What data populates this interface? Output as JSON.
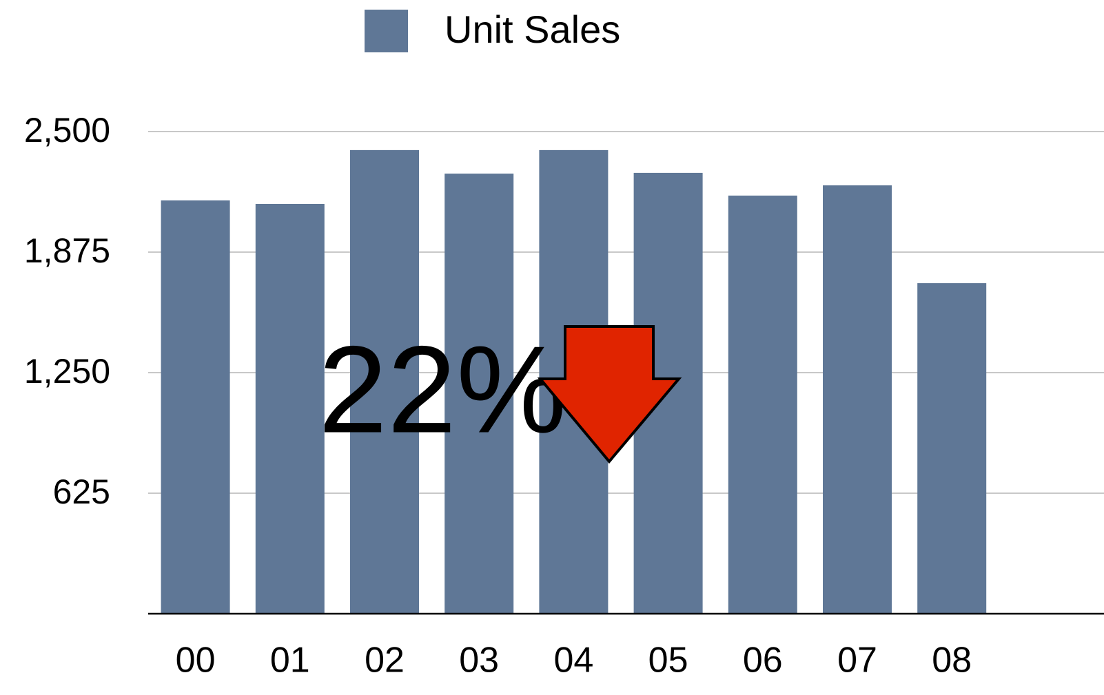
{
  "chart_data": {
    "type": "bar",
    "legend": "top",
    "series": [
      {
        "name": "Unit Sales",
        "color": "#5f7796",
        "values": [
          2143,
          2125,
          2404,
          2282,
          2404,
          2286,
          2168,
          2221,
          1714
        ]
      }
    ],
    "categories": [
      "00",
      "01",
      "02",
      "03",
      "04",
      "05",
      "06",
      "07",
      "08"
    ],
    "ylim": [
      0,
      2500
    ],
    "yticks": [
      625,
      {
        "value": 1250,
        "label": "1,250"
      },
      {
        "value": 1875,
        "label": "1,875"
      },
      {
        "value": 2500,
        "label": "2,500"
      }
    ],
    "grid": true,
    "annotation": "22%"
  }
}
